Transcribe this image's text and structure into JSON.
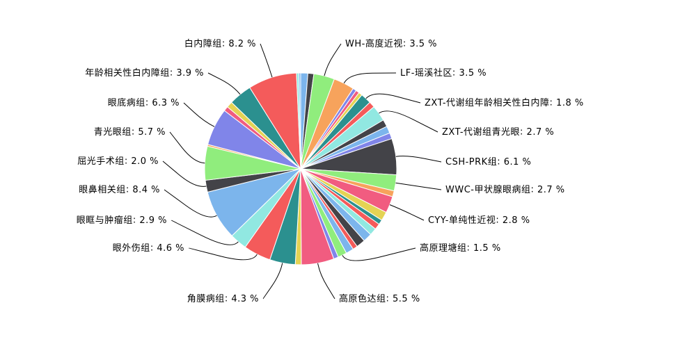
{
  "chart_data": {
    "type": "pie",
    "categories": [
      null,
      null,
      "WH-高度近视",
      "LF-瑶溪社区",
      null,
      null,
      null,
      "ZXT-代谢组年龄相关性白内障",
      null,
      "ZXT-代谢组青光眼",
      null,
      null,
      null,
      "CSH-PRK组",
      "WWC-甲状腺眼病组",
      null,
      "CYY-单纯性近视",
      null,
      null,
      null,
      null,
      null,
      null,
      null,
      null,
      "高原理塘组",
      null,
      "高原色达组",
      null,
      "角膜病组",
      "眼外伤组",
      "眼眶与肿瘤组",
      "眼鼻相关组",
      "屈光手术组",
      "青光眼组",
      null,
      "眼底病组",
      null,
      null,
      "年龄相关性白内障组",
      "白内障组",
      null,
      null
    ],
    "values": [
      1.2,
      1.0,
      3.5,
      3.5,
      0.6,
      0.6,
      0.6,
      1.8,
      1.0,
      2.7,
      1.2,
      1.2,
      1.0,
      6.1,
      2.7,
      1.0,
      2.8,
      1.5,
      0.8,
      1.0,
      1.2,
      1.5,
      1.5,
      0.8,
      1.3,
      1.5,
      0.8,
      5.5,
      1.0,
      4.3,
      4.6,
      2.9,
      8.4,
      2.0,
      5.7,
      0.3,
      6.3,
      0.8,
      1.0,
      3.9,
      8.2,
      0.4,
      0.3
    ],
    "value_labels": [
      null,
      null,
      "3.5 %",
      "3.5 %",
      null,
      null,
      null,
      "1.8 %",
      null,
      "2.7 %",
      null,
      null,
      null,
      "6.1 %",
      "2.7 %",
      null,
      "2.8 %",
      null,
      null,
      null,
      null,
      null,
      null,
      null,
      null,
      "1.5 %",
      null,
      "5.5 %",
      null,
      "4.3 %",
      "4.6 %",
      "2.9 %",
      "8.4 %",
      "2.0 %",
      "5.7 %",
      null,
      "6.3 %",
      null,
      null,
      "3.9 %",
      "8.2 %",
      null,
      null
    ],
    "colors": [
      "#7cb5ec",
      "#434348",
      "#90ed7d",
      "#f7a35c",
      "#8085e9",
      "#f15c80",
      "#e4d354",
      "#2b908f",
      "#f45b5b",
      "#91e8e1",
      "#434348",
      "#7cb5ec",
      "#8085e9",
      "#434348",
      "#90ed7d",
      "#f7a35c",
      "#f15c80",
      "#e4d354",
      "#2b908f",
      "#f45b5b",
      "#91e8e1",
      "#7cb5ec",
      "#434348",
      "#f45b5b",
      "#7cb5ec",
      "#90ed7d",
      "#8085e9",
      "#f15c80",
      "#e4d354",
      "#2b908f",
      "#f45b5b",
      "#91e8e1",
      "#7cb5ec",
      "#434348",
      "#90ed7d",
      "#f7a35c",
      "#8085e9",
      "#f15c80",
      "#e4d354",
      "#2b908f",
      "#f45b5b",
      "#91e8e1",
      "#7cb5ec"
    ]
  }
}
